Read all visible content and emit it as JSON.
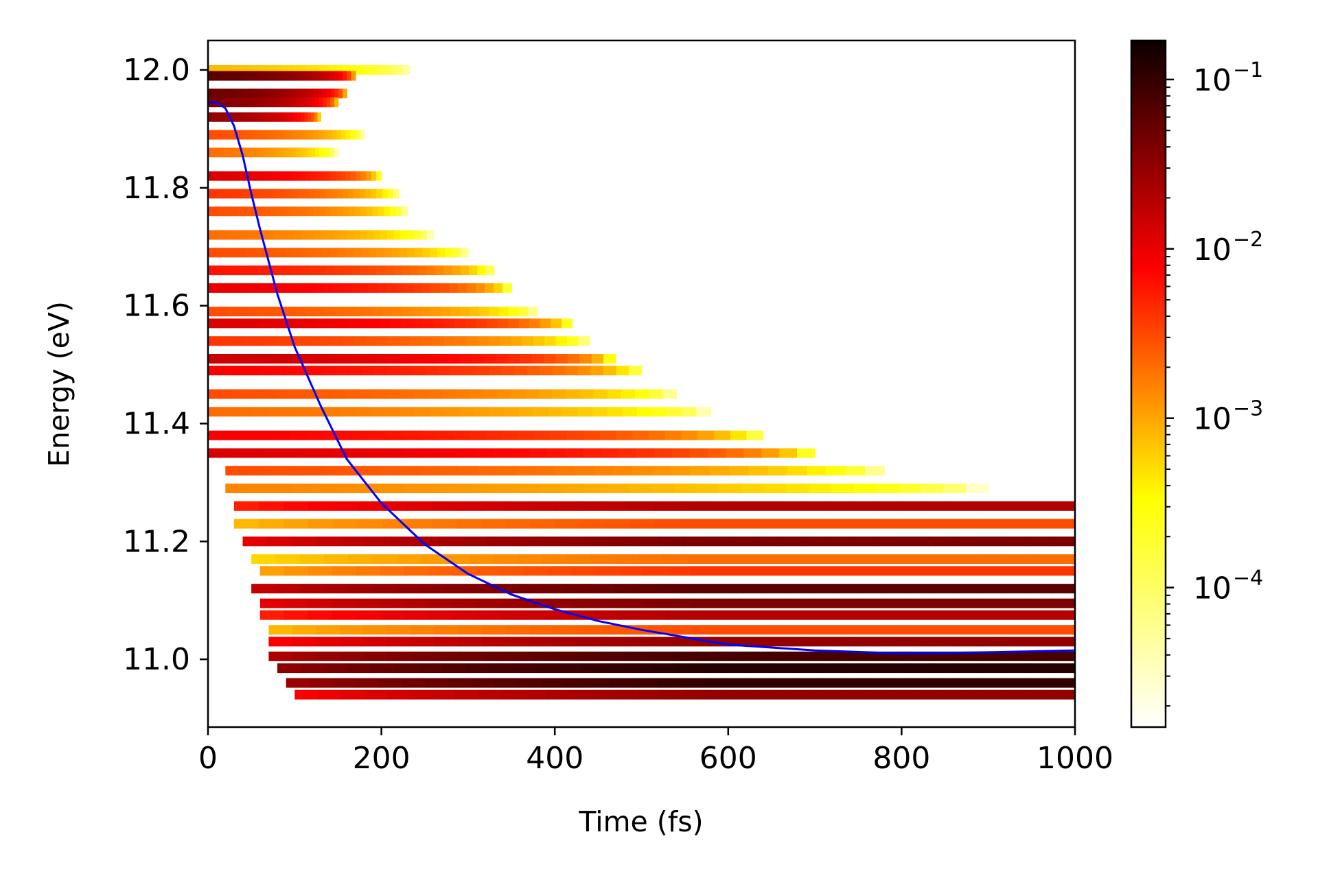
{
  "chart_data": {
    "type": "heatmap",
    "title": "",
    "xlabel": "Time (fs)",
    "ylabel": "Energy (eV)",
    "xlim": [
      0,
      1000
    ],
    "ylim": [
      10.885,
      12.05
    ],
    "x_ticks": [
      "0",
      "200",
      "400",
      "600",
      "800",
      "1000"
    ],
    "y_ticks": [
      "11.0",
      "11.2",
      "11.4",
      "11.6",
      "11.8",
      "12.0"
    ],
    "colormap": "hot_r",
    "colorbar": {
      "scale": "log",
      "range": [
        1.5e-05,
        0.17
      ],
      "major_ticks": [
        {
          "value": 0.0001,
          "base": "10",
          "exponent": "−4"
        },
        {
          "value": 0.001,
          "base": "10",
          "exponent": "−3"
        },
        {
          "value": 0.01,
          "base": "10",
          "exponent": "−2"
        },
        {
          "value": 0.1,
          "base": "10",
          "exponent": "−1"
        }
      ]
    },
    "line_series": {
      "color": "#0000ff",
      "x": [
        0,
        10,
        20,
        30,
        40,
        50,
        60,
        80,
        100,
        130,
        160,
        200,
        250,
        300,
        350,
        400,
        450,
        500,
        600,
        700,
        800,
        900,
        1000
      ],
      "y": [
        11.945,
        11.945,
        11.935,
        11.905,
        11.855,
        11.79,
        11.73,
        11.62,
        11.53,
        11.43,
        11.34,
        11.265,
        11.195,
        11.145,
        11.11,
        11.085,
        11.065,
        11.05,
        11.025,
        11.015,
        11.01,
        11.012,
        11.015
      ]
    },
    "intensity_bands": [
      {
        "e": 12.0,
        "t0": 0,
        "t1": 240,
        "peak": 0.0008
      },
      {
        "e": 11.99,
        "t0": 0,
        "t1": 170,
        "peak": 0.06
      },
      {
        "e": 11.96,
        "t0": 0,
        "t1": 160,
        "peak": 0.05
      },
      {
        "e": 11.945,
        "t0": 0,
        "t1": 150,
        "peak": 0.04
      },
      {
        "e": 11.92,
        "t0": 0,
        "t1": 130,
        "peak": 0.03
      },
      {
        "e": 11.89,
        "t0": 0,
        "t1": 180,
        "peak": 0.003
      },
      {
        "e": 11.86,
        "t0": 0,
        "t1": 150,
        "peak": 0.002
      },
      {
        "e": 11.82,
        "t0": 0,
        "t1": 200,
        "peak": 0.012
      },
      {
        "e": 11.79,
        "t0": 0,
        "t1": 220,
        "peak": 0.004
      },
      {
        "e": 11.76,
        "t0": 0,
        "t1": 230,
        "peak": 0.003
      },
      {
        "e": 11.72,
        "t0": 0,
        "t1": 260,
        "peak": 0.002
      },
      {
        "e": 11.69,
        "t0": 0,
        "t1": 300,
        "peak": 0.003
      },
      {
        "e": 11.66,
        "t0": 0,
        "t1": 330,
        "peak": 0.006
      },
      {
        "e": 11.63,
        "t0": 0,
        "t1": 350,
        "peak": 0.01
      },
      {
        "e": 11.59,
        "t0": 0,
        "t1": 380,
        "peak": 0.003
      },
      {
        "e": 11.57,
        "t0": 0,
        "t1": 420,
        "peak": 0.012
      },
      {
        "e": 11.54,
        "t0": 0,
        "t1": 440,
        "peak": 0.004
      },
      {
        "e": 11.51,
        "t0": 0,
        "t1": 470,
        "peak": 0.015
      },
      {
        "e": 11.49,
        "t0": 0,
        "t1": 500,
        "peak": 0.008
      },
      {
        "e": 11.45,
        "t0": 0,
        "t1": 540,
        "peak": 0.003
      },
      {
        "e": 11.42,
        "t0": 0,
        "t1": 580,
        "peak": 0.002
      },
      {
        "e": 11.38,
        "t0": 0,
        "t1": 640,
        "peak": 0.008
      },
      {
        "e": 11.35,
        "t0": 0,
        "t1": 700,
        "peak": 0.012
      },
      {
        "e": 11.32,
        "t0": 20,
        "t1": 780,
        "peak": 0.003
      },
      {
        "e": 11.29,
        "t0": 20,
        "t1": 900,
        "peak": 0.0015
      },
      {
        "e": 11.26,
        "t0": 30,
        "t1": 1000,
        "peak": 0.02
      },
      {
        "e": 11.23,
        "t0": 30,
        "t1": 1000,
        "peak": 0.003
      },
      {
        "e": 11.2,
        "t0": 40,
        "t1": 1000,
        "peak": 0.04
      },
      {
        "e": 11.17,
        "t0": 50,
        "t1": 1000,
        "peak": 0.002
      },
      {
        "e": 11.15,
        "t0": 60,
        "t1": 1000,
        "peak": 0.004
      },
      {
        "e": 11.12,
        "t0": 50,
        "t1": 1000,
        "peak": 0.06
      },
      {
        "e": 11.095,
        "t0": 60,
        "t1": 1000,
        "peak": 0.04
      },
      {
        "e": 11.075,
        "t0": 60,
        "t1": 1000,
        "peak": 0.02
      },
      {
        "e": 11.05,
        "t0": 70,
        "t1": 1000,
        "peak": 0.003
      },
      {
        "e": 11.03,
        "t0": 70,
        "t1": 1000,
        "peak": 0.03
      },
      {
        "e": 11.005,
        "t0": 70,
        "t1": 1000,
        "peak": 0.08
      },
      {
        "e": 10.985,
        "t0": 80,
        "t1": 1000,
        "peak": 0.12
      },
      {
        "e": 10.96,
        "t0": 90,
        "t1": 1000,
        "peak": 0.1
      },
      {
        "e": 10.94,
        "t0": 100,
        "t1": 1000,
        "peak": 0.03
      }
    ]
  }
}
